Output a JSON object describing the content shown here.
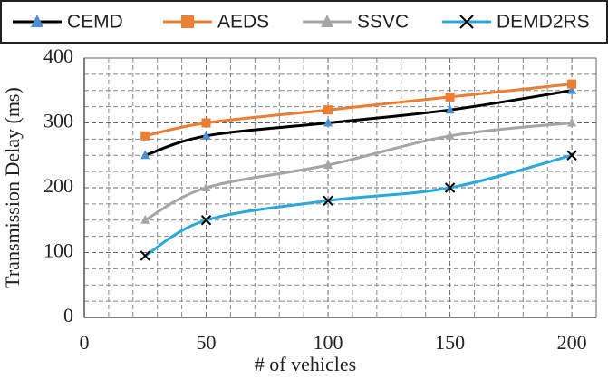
{
  "chart_data": {
    "type": "line",
    "x_label": "# of vehicles",
    "y_label": "Transmission Delay (ms)",
    "x": [
      25,
      50,
      100,
      150,
      200
    ],
    "series": [
      {
        "name": "CEMD",
        "color": "#000000",
        "marker": "triangle",
        "marker_color": "#4a90d9",
        "values": [
          250,
          280,
          300,
          320,
          350
        ]
      },
      {
        "name": "AEDS",
        "color": "#ed7d31",
        "marker": "square",
        "marker_color": "#ed7d31",
        "values": [
          280,
          300,
          320,
          340,
          360
        ]
      },
      {
        "name": "SSVC",
        "color": "#a5a5a5",
        "marker": "triangle",
        "marker_color": "#a5a5a5",
        "values": [
          150,
          200,
          235,
          280,
          300
        ]
      },
      {
        "name": "DEMD2RS",
        "color": "#29a8e0",
        "marker": "cross",
        "marker_color": "#000000",
        "values": [
          95,
          150,
          180,
          200,
          250
        ]
      }
    ],
    "xlim": [
      0,
      210
    ],
    "xticks": [
      0,
      50,
      100,
      150,
      200
    ],
    "ylim": [
      0,
      400
    ],
    "yticks": [
      0,
      100,
      200,
      300,
      400
    ],
    "x_minor_grid": [
      10,
      20,
      30,
      40,
      60,
      70,
      80,
      90,
      110,
      120,
      130,
      140,
      160,
      170,
      180,
      190,
      210
    ],
    "y_minor_grid": [
      25,
      50,
      75,
      125,
      150,
      175,
      225,
      250,
      275,
      325,
      350,
      375
    ],
    "grid": true,
    "legend": "top"
  }
}
